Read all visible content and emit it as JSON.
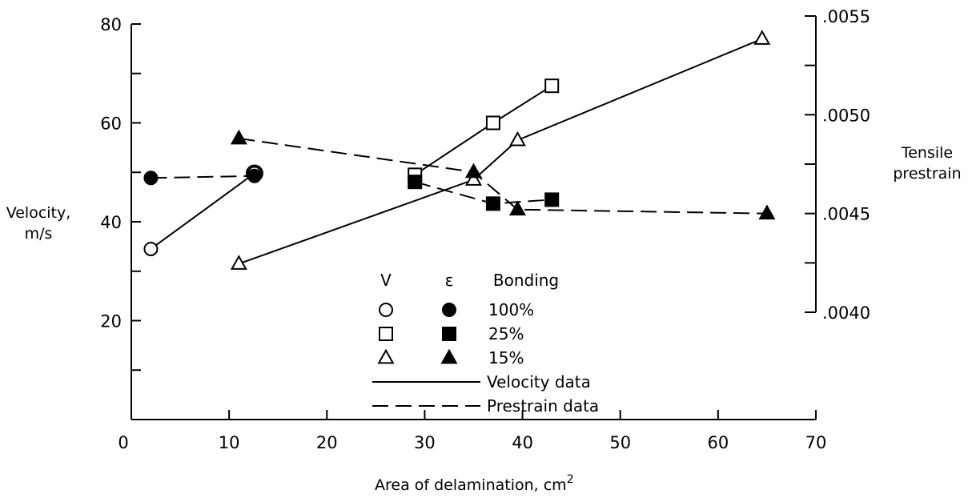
{
  "chart_data": {
    "type": "line",
    "xlabel": "Area of delamination, cm",
    "xlabel_sup": "2",
    "ylabel_left": [
      "Velocity,",
      "m/s"
    ],
    "ylabel_right": [
      "Tensile",
      "prestrain"
    ],
    "xlim": [
      0,
      70
    ],
    "ylim_left": [
      0,
      80
    ],
    "ylim_right": [
      0.004,
      0.0055
    ],
    "x_ticks": [
      0,
      10,
      20,
      30,
      40,
      50,
      60,
      70
    ],
    "x_tick_labels": [
      "0",
      "10",
      "20",
      "30",
      "40",
      "50",
      "60",
      "70"
    ],
    "y_left_ticks": [
      20,
      40,
      60,
      80
    ],
    "y_left_tick_labels": [
      "20",
      "40",
      "60",
      "80"
    ],
    "y_right_ticks": [
      0.004,
      0.0045,
      0.005,
      0.0055
    ],
    "y_right_tick_labels": [
      ".0040",
      ".0045",
      ".0050",
      ".0055"
    ],
    "grid": false,
    "legend": {
      "placement": "center",
      "header": [
        "V",
        "ε",
        "Bonding"
      ],
      "rows": [
        {
          "open": "circle",
          "filled": "circle",
          "label": "100%"
        },
        {
          "open": "square",
          "filled": "square",
          "label": "25%"
        },
        {
          "open": "triangle",
          "filled": "triangle",
          "label": "15%"
        }
      ],
      "lines": [
        {
          "style": "solid",
          "label": "Velocity data"
        },
        {
          "style": "dashed",
          "label": "Prestrain data"
        }
      ]
    },
    "series": [
      {
        "quantity": "velocity",
        "bonding": "100%",
        "marker": "circle",
        "filled": false,
        "line": "solid",
        "axis": "left",
        "x": [
          2.0,
          12.6
        ],
        "y": [
          34.5,
          49.8
        ]
      },
      {
        "quantity": "velocity",
        "bonding": "25%",
        "marker": "square",
        "filled": false,
        "line": "solid",
        "axis": "left",
        "x": [
          29.0,
          37.0,
          43.0
        ],
        "y": [
          49.5,
          60.0,
          67.5
        ]
      },
      {
        "quantity": "velocity",
        "bonding": "15%",
        "marker": "triangle",
        "filled": false,
        "line": "solid",
        "axis": "left",
        "x": [
          11.0,
          35.0,
          39.5,
          64.5
        ],
        "y": [
          31.5,
          48.5,
          56.5,
          77.0
        ]
      },
      {
        "quantity": "prestrain",
        "bonding": "100%",
        "marker": "circle",
        "filled": true,
        "line": "dashed",
        "axis": "right",
        "x": [
          2.0,
          12.6
        ],
        "y": [
          0.00468,
          0.00469
        ]
      },
      {
        "quantity": "prestrain",
        "bonding": "25%",
        "marker": "square",
        "filled": true,
        "line": "dashed",
        "axis": "right",
        "x": [
          29.0,
          37.0,
          43.0
        ],
        "y": [
          0.00466,
          0.00455,
          0.00457
        ]
      },
      {
        "quantity": "prestrain",
        "bonding": "15%",
        "marker": "triangle",
        "filled": true,
        "line": "dashed",
        "axis": "right",
        "x": [
          11.0,
          35.0,
          39.5,
          65.0
        ],
        "y": [
          0.00488,
          0.00471,
          0.00452,
          0.0045
        ]
      }
    ]
  }
}
